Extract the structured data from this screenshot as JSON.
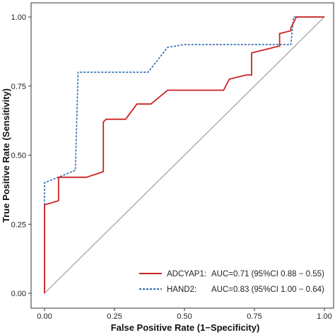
{
  "chart_data": {
    "type": "line",
    "title": "",
    "xlabel": "False Positive Rate (1−Specificity)",
    "ylabel": "True Positive Rate (Sensitivity)",
    "xlim": [
      0,
      1
    ],
    "ylim": [
      0,
      1
    ],
    "x_ticks": [
      "0.00",
      "0.25",
      "0.50",
      "0.75",
      "1.00"
    ],
    "y_ticks": [
      "0.00",
      "0.25",
      "0.50",
      "0.75",
      "1.00"
    ],
    "grid": false,
    "legend_position": "bottom-right",
    "reference_line": {
      "x": [
        0,
        1
      ],
      "y": [
        0,
        1
      ],
      "color": "#b0b0b0"
    },
    "series": [
      {
        "name": "ADCYAP1:",
        "auc_text": "AUC=0.71 (95%CI 0.88 − 0.55)",
        "color": "#cc2222",
        "dash": "solid",
        "x": [
          0,
          0,
          0.05,
          0.05,
          0.15,
          0.21,
          0.21,
          0.22,
          0.29,
          0.33,
          0.38,
          0.44,
          0.5,
          0.64,
          0.66,
          0.72,
          0.74,
          0.74,
          0.84,
          0.84,
          0.88,
          0.88,
          0.9,
          1
        ],
        "y": [
          0,
          0.32,
          0.335,
          0.42,
          0.42,
          0.44,
          0.62,
          0.63,
          0.63,
          0.685,
          0.685,
          0.735,
          0.735,
          0.735,
          0.775,
          0.79,
          0.79,
          0.87,
          0.895,
          0.94,
          0.95,
          0.96,
          1,
          1
        ]
      },
      {
        "name": "HAND2:",
        "auc_text": "AUC=0.83 (95%CI 1.00 − 0.64)",
        "color": "#2a6ab0",
        "dash": "dashed",
        "x": [
          0,
          0,
          0.11,
          0.12,
          0.37,
          0.44,
          0.5,
          0.88,
          0.89,
          1
        ],
        "y": [
          0,
          0.4,
          0.445,
          0.8,
          0.8,
          0.89,
          0.9,
          0.9,
          1,
          1
        ]
      }
    ]
  }
}
